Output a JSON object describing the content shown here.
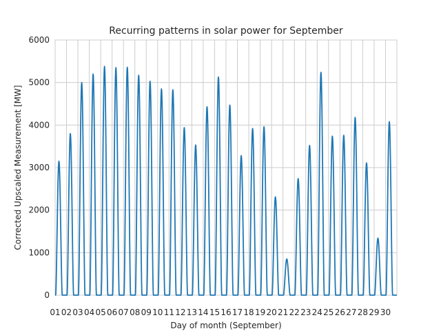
{
  "chart_data": {
    "type": "line",
    "title": "Recurring patterns in solar power for September",
    "xlabel": "Day of month (September)",
    "ylabel": "Corrected Upscaled Measurement [MW]",
    "xlim": [
      1,
      31
    ],
    "ylim": [
      0,
      6000
    ],
    "grid": true,
    "yticks": [
      0,
      1000,
      2000,
      3000,
      4000,
      5000,
      6000
    ],
    "xtick_labels": [
      "01",
      "02",
      "03",
      "04",
      "05",
      "06",
      "07",
      "08",
      "09",
      "10",
      "11",
      "12",
      "13",
      "14",
      "15",
      "16",
      "17",
      "18",
      "19",
      "20",
      "21",
      "22",
      "23",
      "24",
      "25",
      "26",
      "27",
      "28",
      "29",
      "30"
    ],
    "line_color": "#1f77b4",
    "series": [
      {
        "daily_peak_MW": [
          3150,
          3800,
          5000,
          5200,
          5380,
          5350,
          5360,
          5170,
          5030,
          4850,
          4830,
          3940,
          3530,
          4430,
          5130,
          4470,
          3280,
          3920,
          3960,
          2310,
          850,
          2740,
          3520,
          5240,
          3740,
          3760,
          4180,
          3110,
          1340,
          4080
        ]
      }
    ]
  }
}
